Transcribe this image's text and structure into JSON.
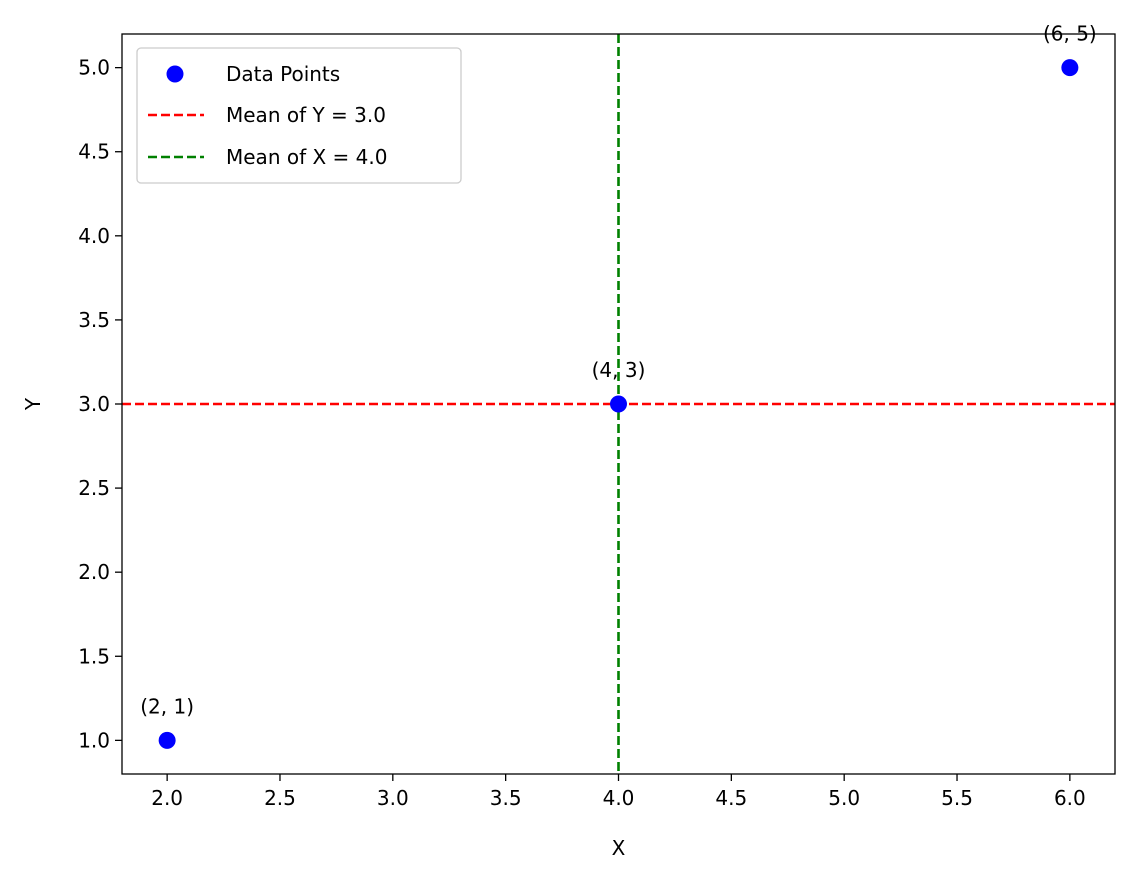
{
  "chart_data": {
    "type": "scatter",
    "title": "",
    "xlabel": "X",
    "ylabel": "Y",
    "xlim": [
      1.8,
      6.2
    ],
    "ylim": [
      0.8,
      5.2
    ],
    "xticks": [
      2.0,
      2.5,
      3.0,
      3.5,
      4.0,
      4.5,
      5.0,
      5.5,
      6.0
    ],
    "xtick_labels": [
      "2.0",
      "2.5",
      "3.0",
      "3.5",
      "4.0",
      "4.5",
      "5.0",
      "5.5",
      "6.0"
    ],
    "yticks": [
      1.0,
      1.5,
      2.0,
      2.5,
      3.0,
      3.5,
      4.0,
      4.5,
      5.0
    ],
    "ytick_labels": [
      "1.0",
      "1.5",
      "2.0",
      "2.5",
      "3.0",
      "3.5",
      "4.0",
      "4.5",
      "5.0"
    ],
    "grid": false,
    "series": [
      {
        "name": "Data Points",
        "x": [
          2,
          4,
          6
        ],
        "y": [
          1,
          3,
          5
        ],
        "color": "#0000ff"
      }
    ],
    "annotations": [
      {
        "text": "(2, 1)",
        "x": 2,
        "y": 1
      },
      {
        "text": "(4, 3)",
        "x": 4,
        "y": 3
      },
      {
        "text": "(6, 5)",
        "x": 6,
        "y": 5
      }
    ],
    "reference_lines": [
      {
        "label": "Mean of Y = 3.0",
        "orientation": "horizontal",
        "value": 3.0,
        "color": "#ff0000",
        "style": "dashed"
      },
      {
        "label": "Mean of X = 4.0",
        "orientation": "vertical",
        "value": 4.0,
        "color": "#008000",
        "style": "dashed"
      }
    ],
    "legend": {
      "position": "top-left",
      "entries": [
        "Data Points",
        "Mean of Y = 3.0",
        "Mean of X = 4.0"
      ]
    }
  }
}
